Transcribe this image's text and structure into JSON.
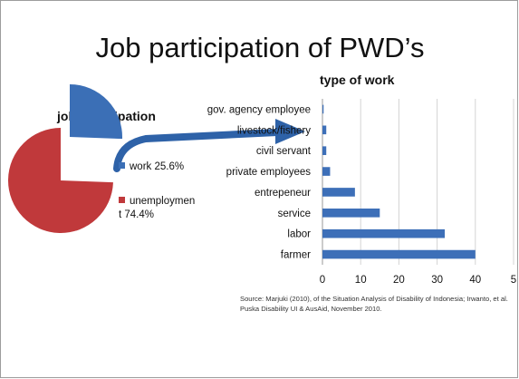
{
  "title": "Job participation of PWD’s",
  "pie": {
    "title": "job participation",
    "legend": [
      {
        "label": "work 25.6%",
        "color": "#3b6fb6"
      },
      {
        "label_line1": "unemploymen",
        "label_line2": "t 74.4%",
        "color": "#c0393b"
      }
    ]
  },
  "source": "Source: Marjuki (2010), of the Situation Analysis of Disability of Indonesia; Irwanto, et al. Puska Disability UI & AusAid, November 2010.",
  "chart_data": [
    {
      "type": "pie",
      "title": "job participation",
      "slices": [
        {
          "label": "work",
          "value": 25.6,
          "color": "#3b6fb6"
        },
        {
          "label": "unemployment",
          "value": 74.4,
          "color": "#c0393b"
        }
      ]
    },
    {
      "type": "bar",
      "orientation": "horizontal",
      "title": "type of work",
      "categories": [
        "gov. agency employee",
        "livestock/fishery",
        "civil servant",
        "private employees",
        "entrepeneur",
        "service",
        "labor",
        "farmer"
      ],
      "values": [
        0.3,
        1,
        1,
        2,
        8.5,
        15,
        32,
        40
      ],
      "xlim": [
        0,
        50
      ],
      "xticks": [
        "0",
        "10",
        "20",
        "30",
        "40",
        "5"
      ],
      "grid": true,
      "bar_color": "#3d6fb8"
    }
  ]
}
